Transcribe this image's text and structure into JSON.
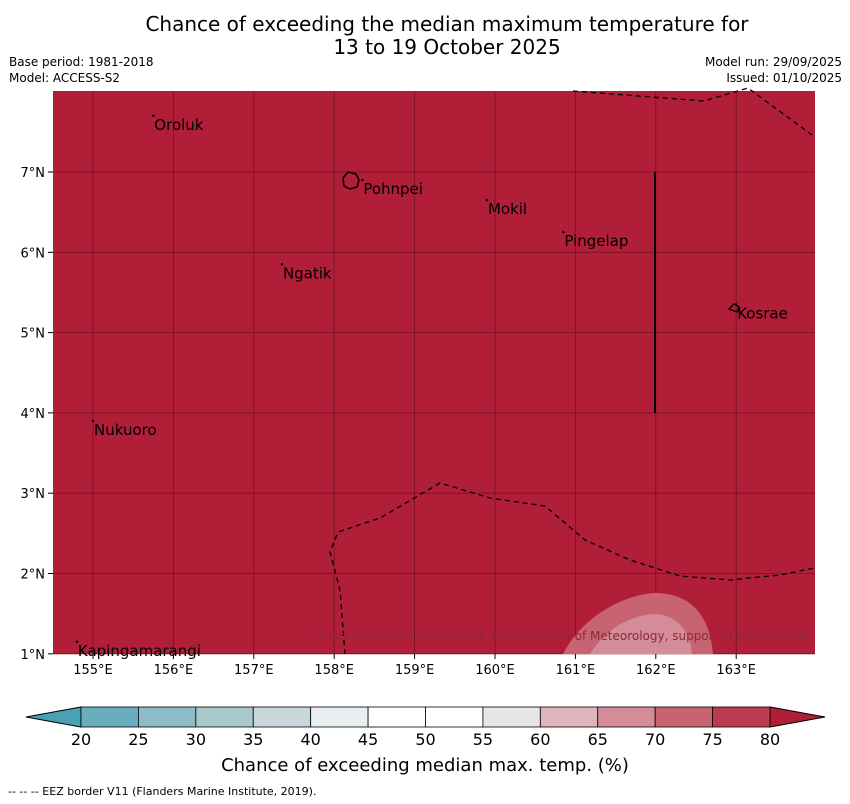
{
  "header": {
    "title_line1": "Chance of exceeding the median maximum temperature for",
    "title_line2": "13 to 19 October 2025",
    "base_period": "Base period: 1981-2018",
    "model": "Model: ACCESS-S2",
    "model_run": "Model run: 29/09/2025",
    "issued": "Issued: 01/10/2025"
  },
  "map": {
    "background_color": "#b01e38",
    "grid_color": "#7a1020",
    "lon_ticks": [
      "155°E",
      "156°E",
      "157°E",
      "158°E",
      "159°E",
      "160°E",
      "161°E",
      "162°E",
      "163°E"
    ],
    "lat_ticks": [
      "7°N",
      "6°N",
      "5°N",
      "4°N",
      "3°N",
      "2°N",
      "1°N"
    ],
    "places": [
      {
        "name": "Oroluk",
        "lon": 155.75,
        "lat": 7.65
      },
      {
        "name": "Pohnpei",
        "lon": 158.35,
        "lat": 6.85
      },
      {
        "name": "Mokil",
        "lon": 159.9,
        "lat": 6.6
      },
      {
        "name": "Pingelap",
        "lon": 160.85,
        "lat": 6.2
      },
      {
        "name": "Ngatik",
        "lon": 157.35,
        "lat": 5.8
      },
      {
        "name": "Kosrae",
        "lon": 163.0,
        "lat": 5.3
      },
      {
        "name": "Nukuoro",
        "lon": 155.0,
        "lat": 3.85
      },
      {
        "name": "Kapingamarangi",
        "lon": 154.8,
        "lat": 1.1
      }
    ],
    "copyright": "© Commonwealth of Australia 2025, Bureau of Meteorology, supported by COSPPac"
  },
  "colorbar": {
    "ticks": [
      "20",
      "25",
      "30",
      "35",
      "40",
      "45",
      "50",
      "55",
      "60",
      "65",
      "70",
      "75",
      "80"
    ],
    "colors": [
      "#68aebe",
      "#8bbcc7",
      "#a8c8cc",
      "#c8d7da",
      "#e8eef1",
      "#ffffff",
      "#ffffff",
      "#e6e6e6",
      "#e0b4bc",
      "#d48d98",
      "#c86472",
      "#bb3b50"
    ],
    "under_color": "#4aa0b4",
    "over_color": "#b01e38",
    "label": "Chance of exceeding median max. temp. (%)"
  },
  "footnote": "--  --  -- EEZ border V11 (Flanders Marine Institute, 2019)."
}
